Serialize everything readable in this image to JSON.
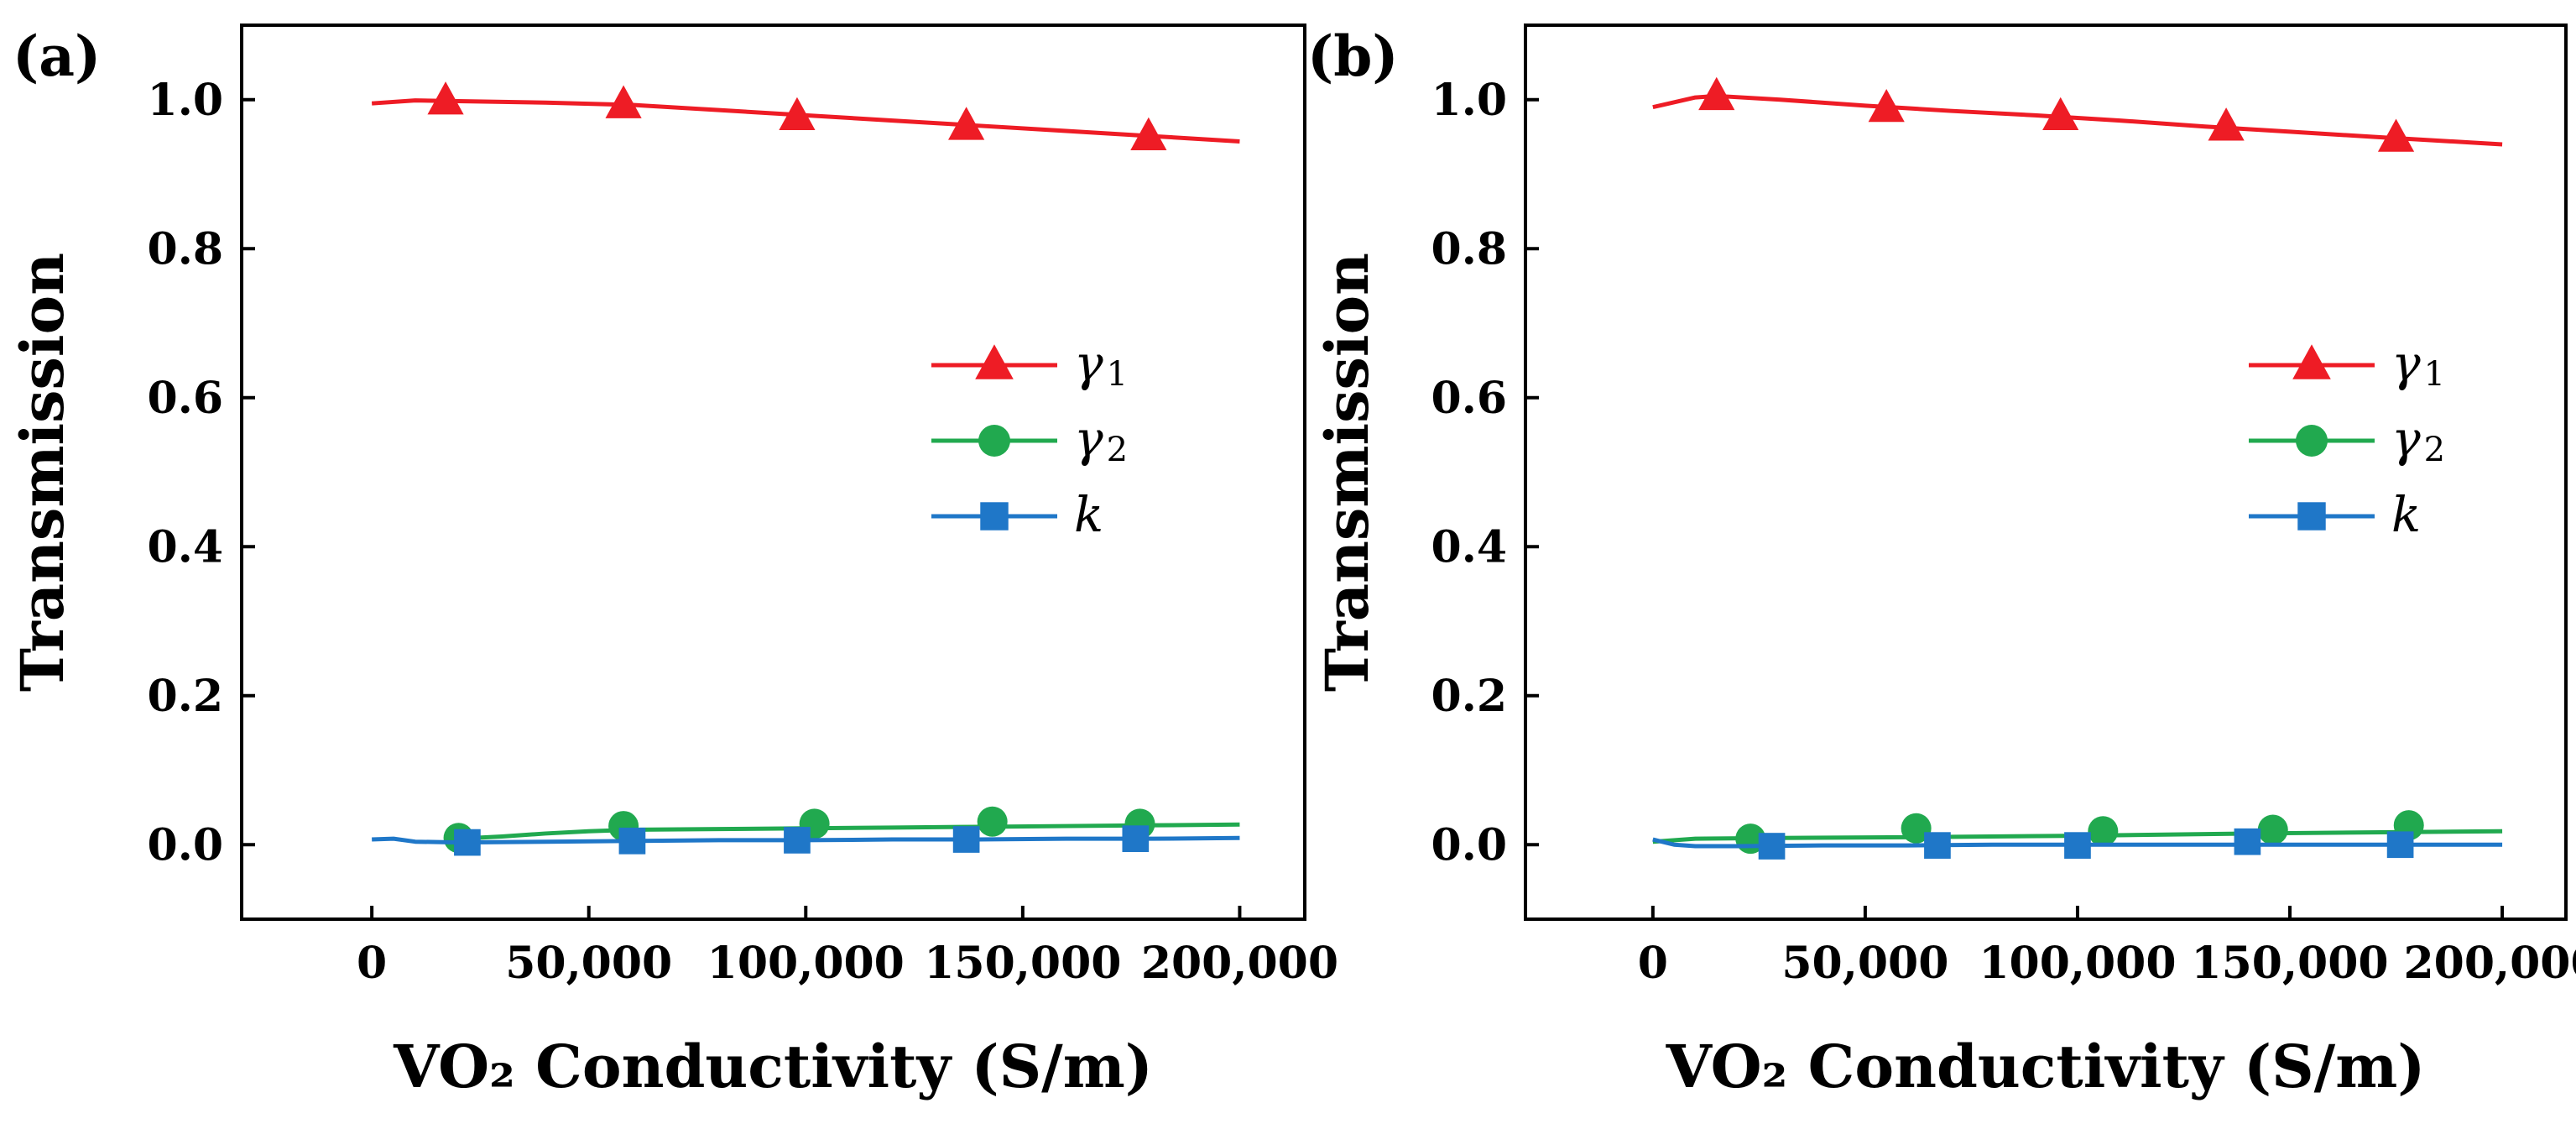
{
  "chart_data": [
    {
      "type": "line",
      "panel_label": "(a)",
      "xlabel": "VO₂ Conductivity (S/m)",
      "ylabel": "Transmission",
      "xlim": [
        -30000,
        215000
      ],
      "ylim": [
        -0.1,
        1.1
      ],
      "xticks": [
        0,
        50000,
        100000,
        150000,
        200000
      ],
      "xtick_labels": [
        "0",
        "50,000",
        "100,000",
        "150,000",
        "200,000"
      ],
      "yticks": [
        0.0,
        0.2,
        0.4,
        0.6,
        0.8,
        1.0
      ],
      "ytick_labels": [
        "0.0",
        "0.2",
        "0.4",
        "0.6",
        "0.8",
        "1.0"
      ],
      "grid": false,
      "legend_position": "center-right",
      "series": [
        {
          "name": "γ1",
          "label_main": "γ",
          "label_sub": "1",
          "color": "#ee1c25",
          "marker": "triangle",
          "line_x": [
            0,
            10000,
            20000,
            40000,
            60000,
            80000,
            100000,
            120000,
            140000,
            160000,
            180000,
            200000
          ],
          "line_y": [
            0.995,
            0.999,
            0.998,
            0.996,
            0.993,
            0.986,
            0.979,
            0.972,
            0.965,
            0.958,
            0.951,
            0.944
          ],
          "marker_x": [
            17000,
            58000,
            98000,
            137000,
            179000
          ],
          "marker_y": [
            0.998,
            0.993,
            0.977,
            0.964,
            0.95
          ]
        },
        {
          "name": "γ2",
          "label_main": "γ",
          "label_sub": "2",
          "color": "#21a94f",
          "marker": "circle",
          "line_x": [
            20000,
            30000,
            40000,
            50000,
            60000,
            80000,
            100000,
            120000,
            140000,
            160000,
            180000,
            200000
          ],
          "line_y": [
            0.008,
            0.011,
            0.015,
            0.018,
            0.02,
            0.021,
            0.022,
            0.023,
            0.024,
            0.025,
            0.026,
            0.027
          ],
          "marker_x": [
            20000,
            58000,
            102000,
            143000,
            177000
          ],
          "marker_y": [
            0.009,
            0.025,
            0.028,
            0.031,
            0.028
          ]
        },
        {
          "name": "k",
          "label_main": "k",
          "label_sub": "",
          "color": "#1f77c8",
          "marker": "square",
          "line_x": [
            0,
            5000,
            10000,
            20000,
            40000,
            60000,
            80000,
            100000,
            120000,
            140000,
            160000,
            180000,
            200000
          ],
          "line_y": [
            0.007,
            0.008,
            0.004,
            0.003,
            0.004,
            0.005,
            0.006,
            0.006,
            0.007,
            0.007,
            0.008,
            0.008,
            0.009
          ],
          "marker_x": [
            22000,
            60000,
            98000,
            137000,
            176000
          ],
          "marker_y": [
            0.003,
            0.005,
            0.006,
            0.007,
            0.008
          ]
        }
      ]
    },
    {
      "type": "line",
      "panel_label": "(b)",
      "xlabel": "VO₂ Conductivity (S/m)",
      "ylabel": "Transmission",
      "xlim": [
        -30000,
        215000
      ],
      "ylim": [
        -0.1,
        1.1
      ],
      "xticks": [
        0,
        50000,
        100000,
        150000,
        200000
      ],
      "xtick_labels": [
        "0",
        "50,000",
        "100,000",
        "150,000",
        "200,000"
      ],
      "yticks": [
        0.0,
        0.2,
        0.4,
        0.6,
        0.8,
        1.0
      ],
      "ytick_labels": [
        "0.0",
        "0.2",
        "0.4",
        "0.6",
        "0.8",
        "1.0"
      ],
      "grid": false,
      "legend_position": "center-right",
      "series": [
        {
          "name": "γ1",
          "label_main": "γ",
          "label_sub": "1",
          "color": "#ee1c25",
          "marker": "triangle",
          "line_x": [
            0,
            10000,
            15000,
            30000,
            50000,
            70000,
            90000,
            110000,
            130000,
            150000,
            170000,
            200000
          ],
          "line_y": [
            0.99,
            1.003,
            1.005,
            1.0,
            0.992,
            0.985,
            0.979,
            0.972,
            0.964,
            0.957,
            0.95,
            0.94
          ],
          "marker_x": [
            15000,
            55000,
            96000,
            135000,
            175000
          ],
          "marker_y": [
            1.004,
            0.988,
            0.977,
            0.963,
            0.948
          ]
        },
        {
          "name": "γ2",
          "label_main": "γ",
          "label_sub": "2",
          "color": "#21a94f",
          "marker": "circle",
          "line_x": [
            0,
            10000,
            30000,
            60000,
            100000,
            140000,
            180000,
            200000
          ],
          "line_y": [
            0.004,
            0.008,
            0.009,
            0.01,
            0.012,
            0.015,
            0.017,
            0.018
          ],
          "marker_x": [
            23000,
            62000,
            106000,
            146000,
            178000
          ],
          "marker_y": [
            0.008,
            0.022,
            0.018,
            0.02,
            0.026
          ]
        },
        {
          "name": "k",
          "label_main": "k",
          "label_sub": "",
          "color": "#1f77c8",
          "marker": "square",
          "line_x": [
            0,
            5000,
            10000,
            20000,
            40000,
            60000,
            80000,
            100000,
            120000,
            140000,
            160000,
            180000,
            200000
          ],
          "line_y": [
            0.007,
            0.0,
            -0.002,
            -0.002,
            -0.001,
            -0.001,
            0.0,
            0.0,
            0.0,
            0.0,
            0.0,
            0.0,
            0.0
          ],
          "marker_x": [
            28000,
            67000,
            100000,
            140000,
            176000
          ],
          "marker_y": [
            -0.002,
            -0.001,
            -0.001,
            0.004,
            0.0
          ]
        }
      ]
    }
  ]
}
